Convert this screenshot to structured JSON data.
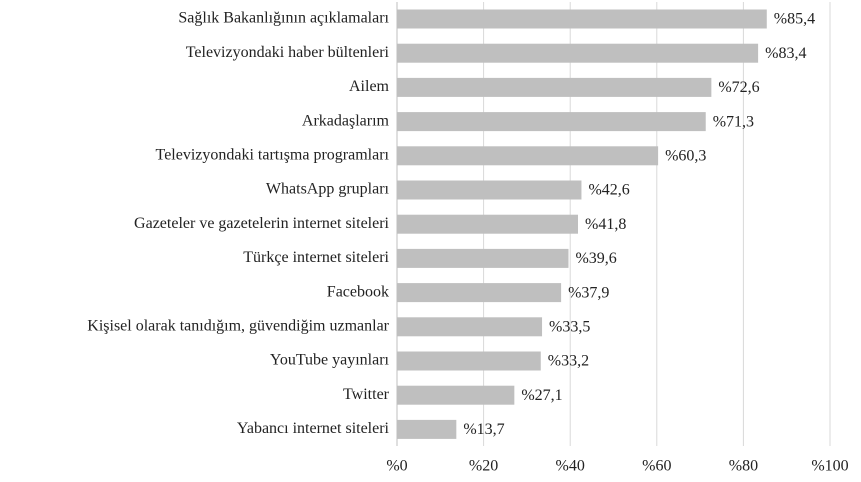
{
  "chart_data": {
    "type": "bar",
    "orientation": "horizontal",
    "categories": [
      "Sağlık Bakanlığının açıklamaları",
      "Televizyondaki haber bültenleri",
      "Ailem",
      "Arkadaşlarım",
      "Televizyondaki tartışma programları",
      "WhatsApp grupları",
      "Gazeteler ve gazetelerin internet siteleri",
      "Türkçe internet siteleri",
      "Facebook",
      "Kişisel olarak tanıdığım, güvendiğim uzmanlar",
      "YouTube yayınları",
      "Twitter",
      "Yabancı internet siteleri"
    ],
    "values": [
      85.4,
      83.4,
      72.6,
      71.3,
      60.3,
      42.6,
      41.8,
      39.6,
      37.9,
      33.5,
      33.2,
      27.1,
      13.7
    ],
    "value_labels": [
      "%85,4",
      "%83,4",
      "%72,6",
      "%71,3",
      "%60,3",
      "%42,6",
      "%41,8",
      "%39,6",
      "%37,9",
      "%33,5",
      "%33,2",
      "%27,1",
      "%13,7"
    ],
    "color": "#bfbfbf",
    "xlim": [
      0,
      100
    ],
    "xticks": [
      {
        "value": 0,
        "label": "%0"
      },
      {
        "value": 20,
        "label": "%20"
      },
      {
        "value": 40,
        "label": "%40"
      },
      {
        "value": 60,
        "label": "%60"
      },
      {
        "value": 80,
        "label": "%80"
      },
      {
        "value": 100,
        "label": "%100"
      }
    ],
    "grid": true
  }
}
